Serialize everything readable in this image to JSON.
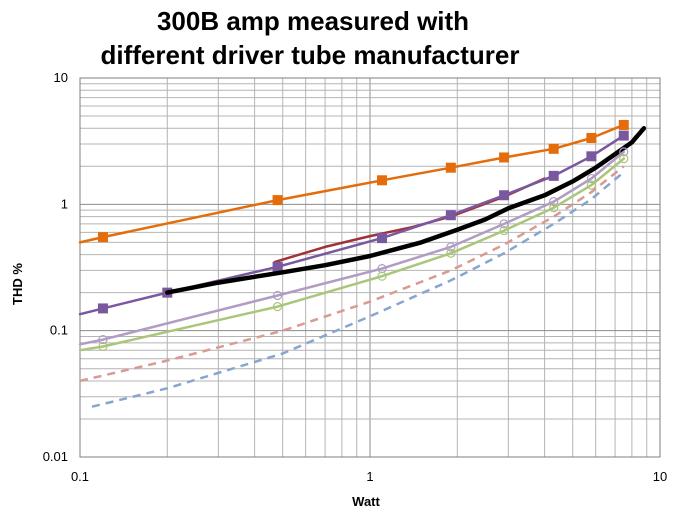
{
  "chart_data": {
    "type": "line",
    "title_lines": [
      "300B amp measured with",
      "different driver tube manufacturer"
    ],
    "xlabel": "Watt",
    "ylabel": "THD %",
    "x_scale": "log",
    "y_scale": "log",
    "xlim": [
      0.1,
      10
    ],
    "ylim": [
      0.01,
      10
    ],
    "x_ticks": [
      {
        "value": 0.1,
        "label": "0.1"
      },
      {
        "value": 1,
        "label": "1"
      },
      {
        "value": 10,
        "label": "10"
      }
    ],
    "y_ticks": [
      {
        "value": 0.01,
        "label": "0.01"
      },
      {
        "value": 0.1,
        "label": "0.1"
      },
      {
        "value": 1,
        "label": "1"
      },
      {
        "value": 10,
        "label": "10"
      }
    ],
    "grid": true,
    "legend": "none",
    "series": [
      {
        "color": "#e46c0a",
        "style": "solid",
        "width": 2.5,
        "marker": "square",
        "x": [
          0.1,
          0.12,
          0.48,
          1.1,
          1.9,
          2.9,
          4.3,
          5.8,
          7.5
        ],
        "y": [
          0.5,
          0.55,
          1.08,
          1.55,
          1.95,
          2.35,
          2.75,
          3.35,
          4.25
        ]
      },
      {
        "color": "#a0333a",
        "style": "solid",
        "width": 2.5,
        "marker": "none",
        "x": [
          0.47,
          0.7,
          1.0,
          1.4,
          1.9,
          2.9,
          4.0
        ],
        "y": [
          0.35,
          0.46,
          0.56,
          0.66,
          0.8,
          1.15,
          1.6
        ]
      },
      {
        "color": "#7a58a0",
        "style": "solid",
        "width": 2.5,
        "marker": "square",
        "x": [
          0.1,
          0.12,
          0.2,
          0.48,
          1.1,
          1.9,
          2.9,
          4.3,
          5.8,
          7.5
        ],
        "y": [
          0.135,
          0.15,
          0.2,
          0.32,
          0.54,
          0.82,
          1.18,
          1.68,
          2.4,
          3.5
        ]
      },
      {
        "color": "#000000",
        "style": "solid",
        "width": 4.5,
        "marker": "none",
        "x": [
          0.2,
          0.3,
          0.5,
          0.7,
          1.0,
          1.5,
          2.0,
          2.5,
          3.0,
          4.0,
          5.0,
          6.0,
          7.0,
          8.0,
          8.8
        ],
        "y": [
          0.2,
          0.24,
          0.29,
          0.33,
          0.39,
          0.5,
          0.63,
          0.76,
          0.93,
          1.18,
          1.52,
          1.95,
          2.5,
          3.1,
          4.0
        ]
      },
      {
        "color": "#b19cc4",
        "style": "solid",
        "width": 2.5,
        "marker": "circle",
        "x": [
          0.1,
          0.12,
          0.48,
          1.1,
          1.9,
          2.9,
          4.3,
          5.8,
          7.5
        ],
        "y": [
          0.078,
          0.085,
          0.19,
          0.31,
          0.46,
          0.7,
          1.05,
          1.6,
          2.6
        ]
      },
      {
        "color": "#a9c67a",
        "style": "solid",
        "width": 2.5,
        "marker": "circle",
        "x": [
          0.1,
          0.12,
          0.48,
          1.1,
          1.9,
          2.9,
          4.3,
          5.8,
          7.5
        ],
        "y": [
          0.07,
          0.075,
          0.155,
          0.27,
          0.41,
          0.62,
          0.94,
          1.42,
          2.3
        ]
      },
      {
        "color": "#d99a92",
        "style": "dashed",
        "width": 2.5,
        "marker": "none",
        "x": [
          0.1,
          0.2,
          0.5,
          1.0,
          1.9,
          2.9,
          4.3,
          5.8,
          7.5
        ],
        "y": [
          0.04,
          0.058,
          0.1,
          0.17,
          0.3,
          0.48,
          0.8,
          1.25,
          2.0
        ]
      },
      {
        "color": "#86a6cf",
        "style": "dashed",
        "width": 2.5,
        "marker": "none",
        "x": [
          0.11,
          0.2,
          0.5,
          1.0,
          1.9,
          2.9,
          4.3,
          5.8,
          7.5
        ],
        "y": [
          0.025,
          0.035,
          0.066,
          0.13,
          0.25,
          0.41,
          0.7,
          1.1,
          1.8
        ]
      }
    ]
  }
}
